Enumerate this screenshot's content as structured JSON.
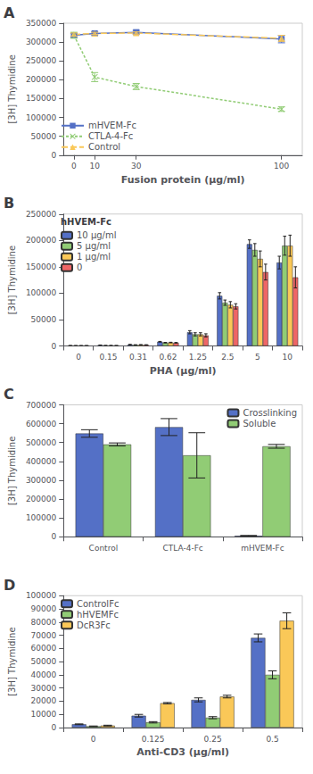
{
  "chart_data": [
    {
      "type": "line",
      "title": "A",
      "x": [
        0,
        10,
        30,
        100
      ],
      "xlabel": "Fusion protein (μg/ml)",
      "ylabel": "[3H] Thymidine",
      "xlim": [
        -5,
        110
      ],
      "xticks": [
        0,
        10,
        30,
        100
      ],
      "ylim": [
        0,
        350000
      ],
      "yticks": [
        0,
        50000,
        100000,
        150000,
        200000,
        250000,
        300000,
        350000
      ],
      "grid": false,
      "legend": "lower left",
      "series": [
        {
          "name": "mHVEM-Fc",
          "values": [
            318000,
            323000,
            326000,
            308000
          ],
          "errors": [
            5000,
            4000,
            5000,
            10000
          ],
          "marker": "square",
          "line_style": "solid"
        },
        {
          "name": "CTLA-4-Fc",
          "values": [
            318000,
            207000,
            182000,
            122000
          ],
          "errors": [
            8000,
            12000,
            8000,
            6000
          ],
          "marker": "x",
          "line_style": "dotted"
        },
        {
          "name": "Control",
          "values": [
            320000,
            323000,
            324000,
            310000
          ],
          "errors": [
            4000,
            3000,
            3000,
            8000
          ],
          "marker": "triangle",
          "line_style": "dashed"
        }
      ]
    },
    {
      "type": "bar",
      "title": "B",
      "categories": [
        "0",
        "0.15",
        "0.31",
        "0.62",
        "1.25",
        "2.5",
        "5",
        "10"
      ],
      "xlabel": "PHA (μg/ml)",
      "ylabel": "[3H] Thymidine",
      "ylim": [
        0,
        250000
      ],
      "yticks": [
        0,
        50000,
        100000,
        150000,
        200000,
        250000
      ],
      "grid": false,
      "legend": "upper left",
      "legend_title": "hHVEM-Fc",
      "series": [
        {
          "name": "10 μg/ml",
          "values": [
            600,
            1500,
            2500,
            8000,
            26000,
            95000,
            193000,
            158000
          ],
          "errors": [
            200,
            300,
            400,
            600,
            3000,
            6000,
            8000,
            12000
          ]
        },
        {
          "name": "5 μg/ml",
          "values": [
            500,
            700,
            2000,
            6200,
            22000,
            82000,
            182000,
            190000
          ],
          "errors": [
            200,
            200,
            300,
            500,
            3000,
            5000,
            12000,
            18000
          ]
        },
        {
          "name": "1 μg/ml",
          "values": [
            500,
            700,
            2200,
            6500,
            22000,
            78000,
            165000,
            190000
          ],
          "errors": [
            200,
            200,
            300,
            500,
            3000,
            6000,
            15000,
            20000
          ]
        },
        {
          "name": "0",
          "values": [
            500,
            600,
            2000,
            6000,
            20000,
            75000,
            140000,
            130000
          ],
          "errors": [
            200,
            200,
            300,
            500,
            3000,
            5000,
            15000,
            20000
          ]
        }
      ]
    },
    {
      "type": "bar",
      "title": "C",
      "categories": [
        "Control",
        "CTLA-4-Fc",
        "mHVEM-Fc"
      ],
      "ylabel": "[3H] Thymidine",
      "ylim": [
        0,
        700000
      ],
      "yticks": [
        0,
        100000,
        200000,
        300000,
        400000,
        500000,
        600000,
        700000
      ],
      "grid": false,
      "legend": "upper right",
      "series": [
        {
          "name": "Crosslinking",
          "values": [
            548000,
            582000,
            5000
          ],
          "errors": [
            20000,
            45000,
            2000
          ]
        },
        {
          "name": "Soluble",
          "values": [
            490000,
            432000,
            480000
          ],
          "errors": [
            8000,
            120000,
            10000
          ]
        }
      ]
    },
    {
      "type": "bar",
      "title": "D",
      "categories": [
        "0",
        "0.125",
        "0.25",
        "0.5"
      ],
      "xlabel": "Anti-CD3 (μg/ml)",
      "ylabel": "[3H] Thymidine",
      "ylim": [
        0,
        100000
      ],
      "yticks": [
        0,
        10000,
        20000,
        30000,
        40000,
        50000,
        60000,
        70000,
        80000,
        90000,
        100000
      ],
      "grid": false,
      "legend": "upper left",
      "series": [
        {
          "name": "ControlFc",
          "values": [
            2500,
            9000,
            21000,
            68000
          ],
          "errors": [
            300,
            1000,
            1500,
            3000
          ]
        },
        {
          "name": "hHVEMFc",
          "values": [
            1000,
            4000,
            7500,
            40000
          ],
          "errors": [
            200,
            500,
            800,
            3000
          ]
        },
        {
          "name": "DcR3Fc",
          "values": [
            1500,
            18500,
            23500,
            81000
          ],
          "errors": [
            300,
            500,
            1000,
            6000
          ]
        }
      ]
    }
  ]
}
